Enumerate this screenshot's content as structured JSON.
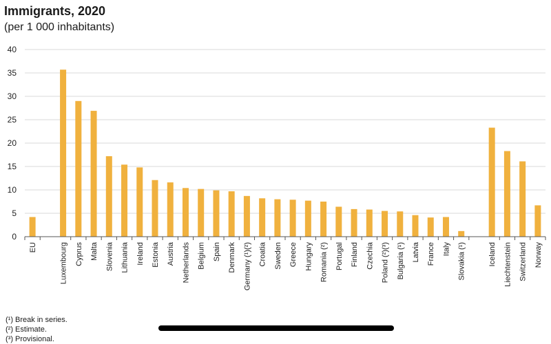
{
  "title": "Immigrants, 2020",
  "subtitle": "(per 1 000 inhabitants)",
  "footnotes": [
    "(¹) Break in series.",
    "(²) Estimate.",
    "(³) Provisional."
  ],
  "colors": {
    "bar": "#f0b13e",
    "grid": "#d9d9d9",
    "axis": "#555555"
  },
  "chart_data": {
    "type": "bar",
    "title": "Immigrants, 2020",
    "subtitle": "(per 1 000 inhabitants)",
    "ylim": [
      0,
      40
    ],
    "yticks": [
      0,
      5,
      10,
      15,
      20,
      25,
      30,
      35,
      40
    ],
    "grid": true,
    "groups": [
      {
        "categories": [
          "EU"
        ],
        "values": [
          4.2
        ]
      },
      {
        "categories": [
          "Luxembourg",
          "Cyprus",
          "Malta",
          "Slovenia",
          "Lithuania",
          "Ireland",
          "Estonia",
          "Austria",
          "Netherlands",
          "Belgium",
          "Spain",
          "Denmark",
          "Germany (¹)(²)",
          "Croatia",
          "Sweden",
          "Greece",
          "Hungary",
          "Romania (²)",
          "Portugal",
          "Finland",
          "Czechia",
          "Poland (²)(³)",
          "Bulgaria (¹)",
          "Latvia",
          "France",
          "Italy",
          "Slovakia (¹)"
        ],
        "values": [
          35.7,
          29.0,
          26.9,
          17.2,
          15.4,
          14.8,
          12.1,
          11.6,
          10.4,
          10.2,
          9.9,
          9.7,
          8.7,
          8.2,
          8.0,
          7.9,
          7.7,
          7.5,
          6.4,
          5.9,
          5.8,
          5.5,
          5.4,
          4.6,
          4.1,
          4.2,
          1.2
        ]
      },
      {
        "categories": [
          "Iceland",
          "Liechtenstein",
          "Switzerland",
          "Norway"
        ],
        "values": [
          23.3,
          18.3,
          16.1,
          6.7
        ]
      }
    ]
  }
}
